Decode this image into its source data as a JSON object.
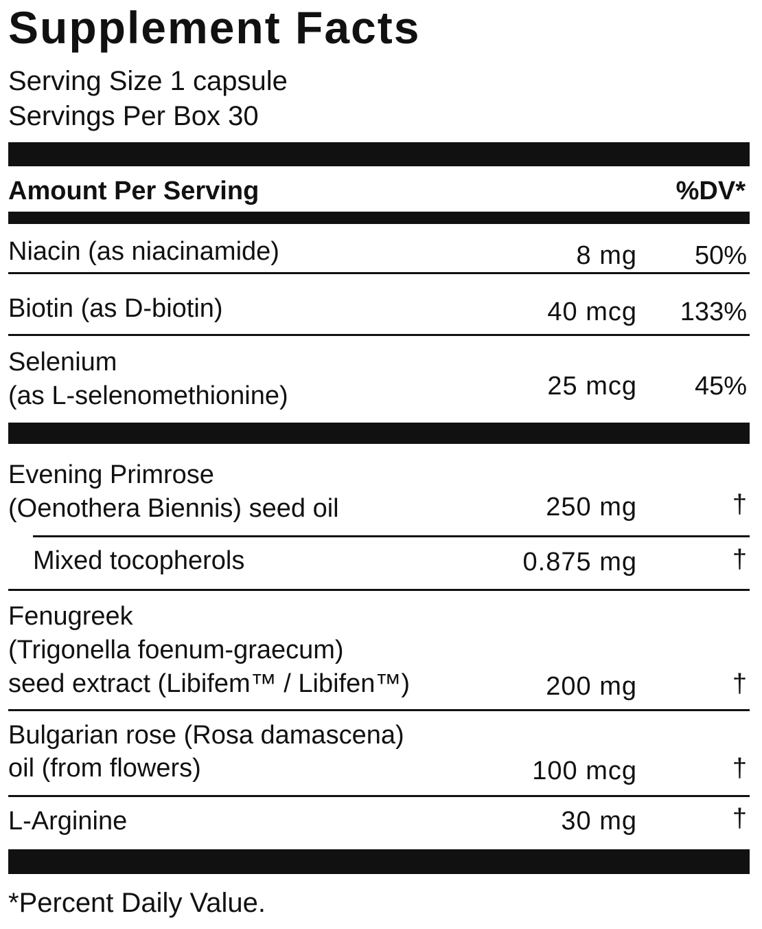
{
  "title": "Supplement Facts",
  "serving_size": "Serving Size 1 capsule",
  "servings_per": "Servings Per Box 30",
  "header": {
    "amount": "Amount Per Serving",
    "dv": "%DV*"
  },
  "rows": [
    {
      "name": [
        "Niacin (as niacinamide)"
      ],
      "amount": "8 mg",
      "dv": "50%"
    },
    {
      "name": [
        "Biotin (as D-biotin)"
      ],
      "amount": "40 mcg",
      "dv": "133%"
    },
    {
      "name": [
        "Selenium",
        "(as L-selenomethionine)"
      ],
      "amount": "25 mcg",
      "dv": "45%"
    },
    {
      "name": [
        "Evening Primrose",
        "(Oenothera Biennis) seed oil"
      ],
      "amount": "250 mg",
      "dv": "†"
    },
    {
      "name": [
        "Mixed tocopherols"
      ],
      "amount": "0.875 mg",
      "dv": "†"
    },
    {
      "name": [
        "Fenugreek",
        "(Trigonella foenum-graecum)",
        "seed extract (Libifem™ / Libifen™)"
      ],
      "amount": "200 mg",
      "dv": "†"
    },
    {
      "name": [
        "Bulgarian rose (Rosa damascena)",
        "oil (from flowers)"
      ],
      "amount": "100 mcg",
      "dv": "†"
    },
    {
      "name": [
        "L-Arginine"
      ],
      "amount": "30 mg",
      "dv": "†"
    }
  ],
  "footnote": "*Percent Daily Value."
}
